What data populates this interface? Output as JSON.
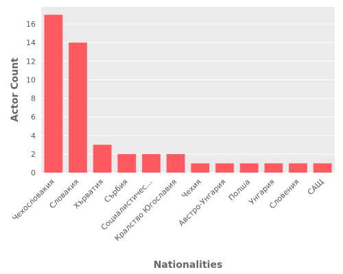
{
  "chart_data": {
    "type": "bar",
    "title": "",
    "xlabel": "Nationalities",
    "ylabel": "Actor Count",
    "categories": [
      "Чехословакия",
      "Словакия",
      "Хърватия",
      "Сърбия",
      "Социалистичес…",
      "Кралство Югославия",
      "Чехия",
      "Австро-Унгария",
      "Полша",
      "Унгария",
      "Словения",
      "САЩ"
    ],
    "values": [
      17,
      14,
      3,
      2,
      2,
      2,
      1,
      1,
      1,
      1,
      1,
      1
    ],
    "yticks": [
      "0",
      "2",
      "4",
      "6",
      "8",
      "10",
      "12",
      "14",
      "16"
    ],
    "ylim": [
      0,
      17.85
    ],
    "grid": true,
    "legend": "none"
  },
  "colors": {
    "plot_background": "#EBEBEB",
    "grid": "#FFFFFF",
    "bar": "#FF5A5F",
    "tick_text": "#555555",
    "axis_title": "#666666"
  }
}
